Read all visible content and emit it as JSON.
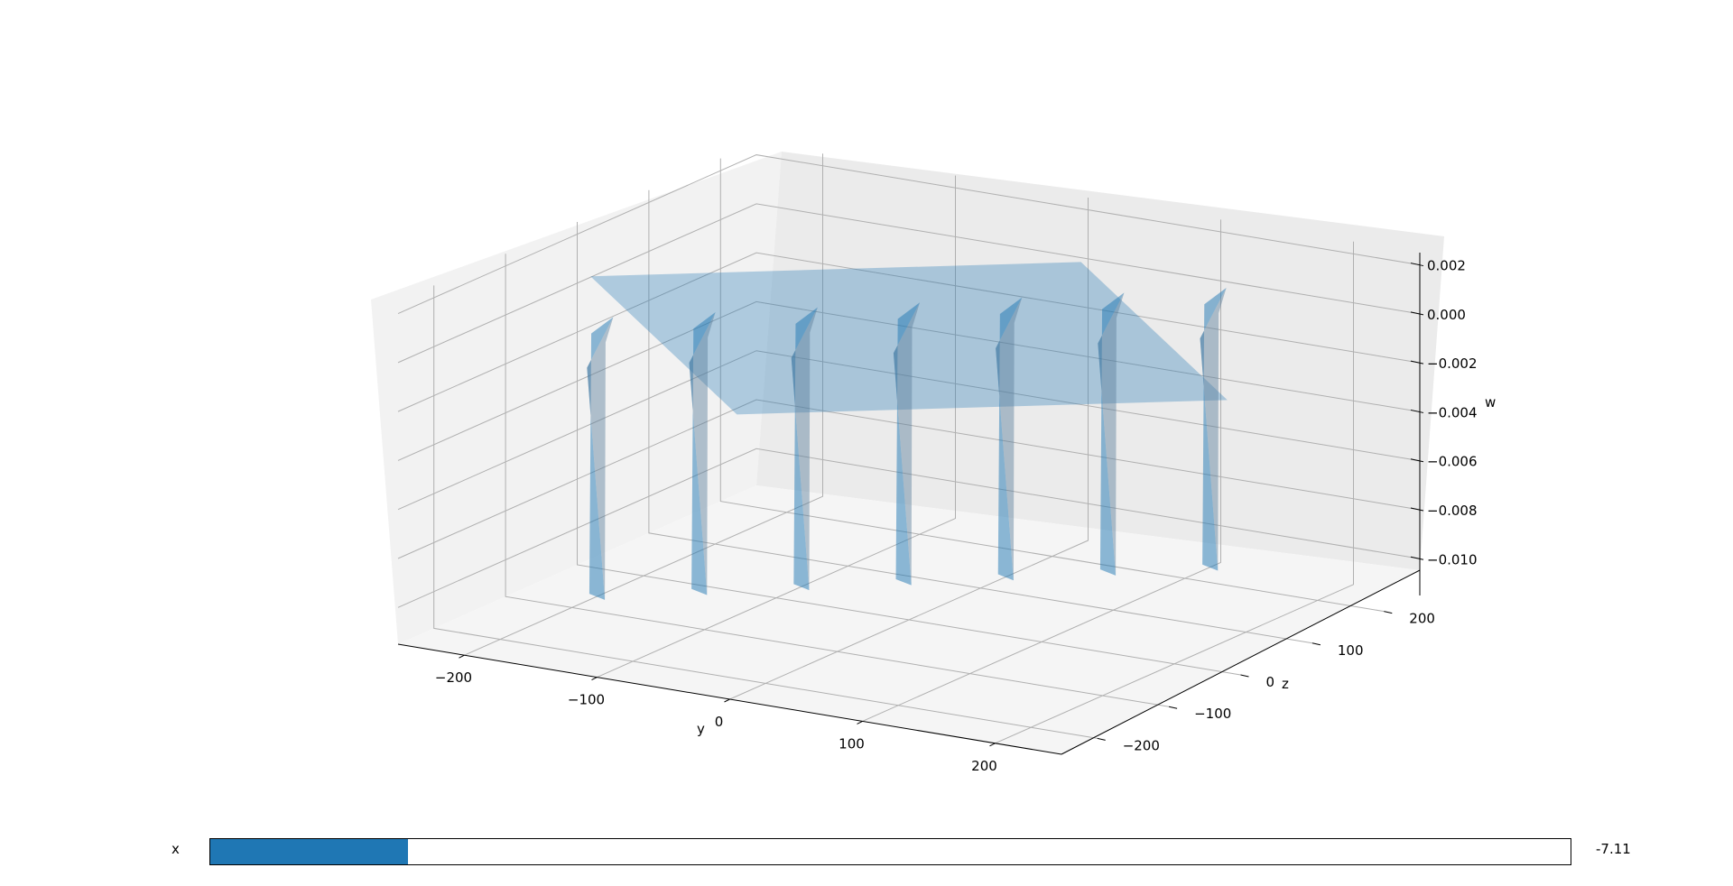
{
  "chart_data": {
    "type": "surface3d",
    "title": "",
    "xlabel": "y",
    "ylabel": "z",
    "zlabel": "w",
    "y_ticks": [
      -200,
      -100,
      0,
      100,
      200
    ],
    "y_tick_labels": [
      "−200",
      "−100",
      "0",
      "100",
      "200"
    ],
    "z_ticks": [
      -200,
      -100,
      0,
      100,
      200
    ],
    "z_tick_labels": [
      "−200",
      "−100",
      "0",
      "100",
      "200"
    ],
    "w_ticks": [
      0.002,
      0.0,
      -0.002,
      -0.004,
      -0.006,
      -0.008,
      -0.01
    ],
    "w_tick_labels": [
      "0.002",
      "0.000",
      "−0.002",
      "−0.004",
      "−0.006",
      "−0.008",
      "−0.010"
    ],
    "y_range": [
      -250,
      250
    ],
    "z_range": [
      -250,
      250
    ],
    "w_range": [
      -0.0115,
      0.0025
    ],
    "surface": {
      "plane_level": 0.0,
      "well_count": 7,
      "well_z_centers": [
        -150,
        -100,
        -50,
        0,
        50,
        100,
        150
      ],
      "well_y_centers": [
        -150,
        -100,
        -50,
        0,
        50,
        100,
        150
      ],
      "well_depth_min": -0.01,
      "well_rim_peak": 0.001
    },
    "color": "#1f77b4",
    "grid": true
  },
  "slider": {
    "label": "x",
    "value_text": "-7.11",
    "fraction": 0.145,
    "fill_color": "#1f77b4"
  }
}
